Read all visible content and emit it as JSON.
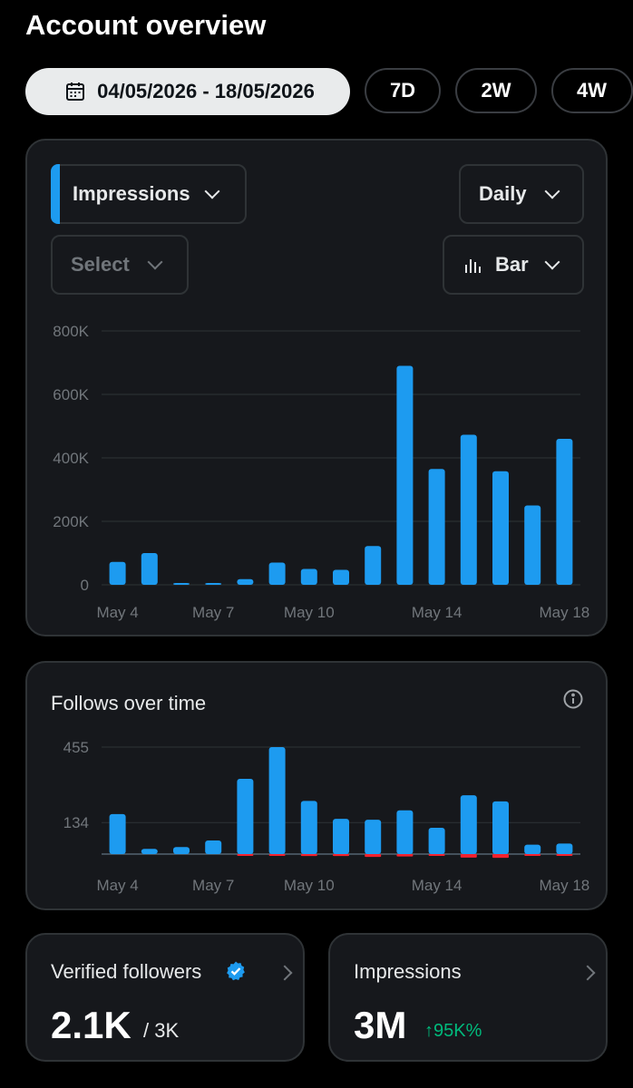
{
  "page": {
    "title": "Account overview"
  },
  "range": {
    "date_label": "04/05/2026 - 18/05/2026",
    "options": [
      "7D",
      "2W",
      "4W"
    ]
  },
  "main_chart": {
    "metric_label": "Impressions",
    "secondary_label": "Select",
    "interval_label": "Daily",
    "type_label": "Bar"
  },
  "follows_card": {
    "title": "Follows over time"
  },
  "stats": {
    "verified": {
      "label": "Verified followers",
      "value": "2.1K",
      "total": "/ 3K"
    },
    "impressions": {
      "label": "Impressions",
      "value": "3M",
      "change": "95K%"
    }
  },
  "colors": {
    "accent": "#1d9bf0",
    "negative": "#f4212e",
    "positive": "#00ba7c",
    "card": "#16181c"
  },
  "chart_data": [
    {
      "type": "bar",
      "title": "",
      "x": [
        "May 4",
        "May 5",
        "May 6",
        "May 7",
        "May 8",
        "May 9",
        "May 10",
        "May 11",
        "May 12",
        "May 13",
        "May 14",
        "May 15",
        "May 16",
        "May 17",
        "May 18"
      ],
      "x_tick_labels": [
        "May 4",
        "May 7",
        "May 10",
        "May 14",
        "May 18"
      ],
      "y_tick_labels": [
        "800K",
        "600K",
        "400K",
        "200K",
        "0"
      ],
      "series": [
        {
          "values": [
            72000,
            100000,
            5000,
            4000,
            18000,
            70000,
            50000,
            47000,
            122000,
            690000,
            365000,
            473000,
            358000,
            250000,
            460000
          ]
        }
      ],
      "ylim": [
        0,
        800000
      ],
      "grid": true
    },
    {
      "type": "bar",
      "title": "Follows over time",
      "x": [
        "May 4",
        "May 5",
        "May 6",
        "May 7",
        "May 8",
        "May 9",
        "May 10",
        "May 11",
        "May 12",
        "May 13",
        "May 14",
        "May 15",
        "May 16",
        "May 17",
        "May 18"
      ],
      "x_tick_labels": [
        "May 4",
        "May 7",
        "May 10",
        "May 14",
        "May 18"
      ],
      "y_tick_labels": [
        "455",
        "134"
      ],
      "series": [
        {
          "values": [
            170,
            22,
            30,
            58,
            320,
            455,
            226,
            150,
            146,
            186,
            112,
            250,
            224,
            40,
            45
          ]
        },
        {
          "values": [
            0,
            0,
            0,
            0,
            -5,
            -3,
            -8,
            -8,
            -12,
            -10,
            -5,
            -15,
            -16,
            -4,
            -4
          ]
        }
      ],
      "grid": true
    }
  ]
}
